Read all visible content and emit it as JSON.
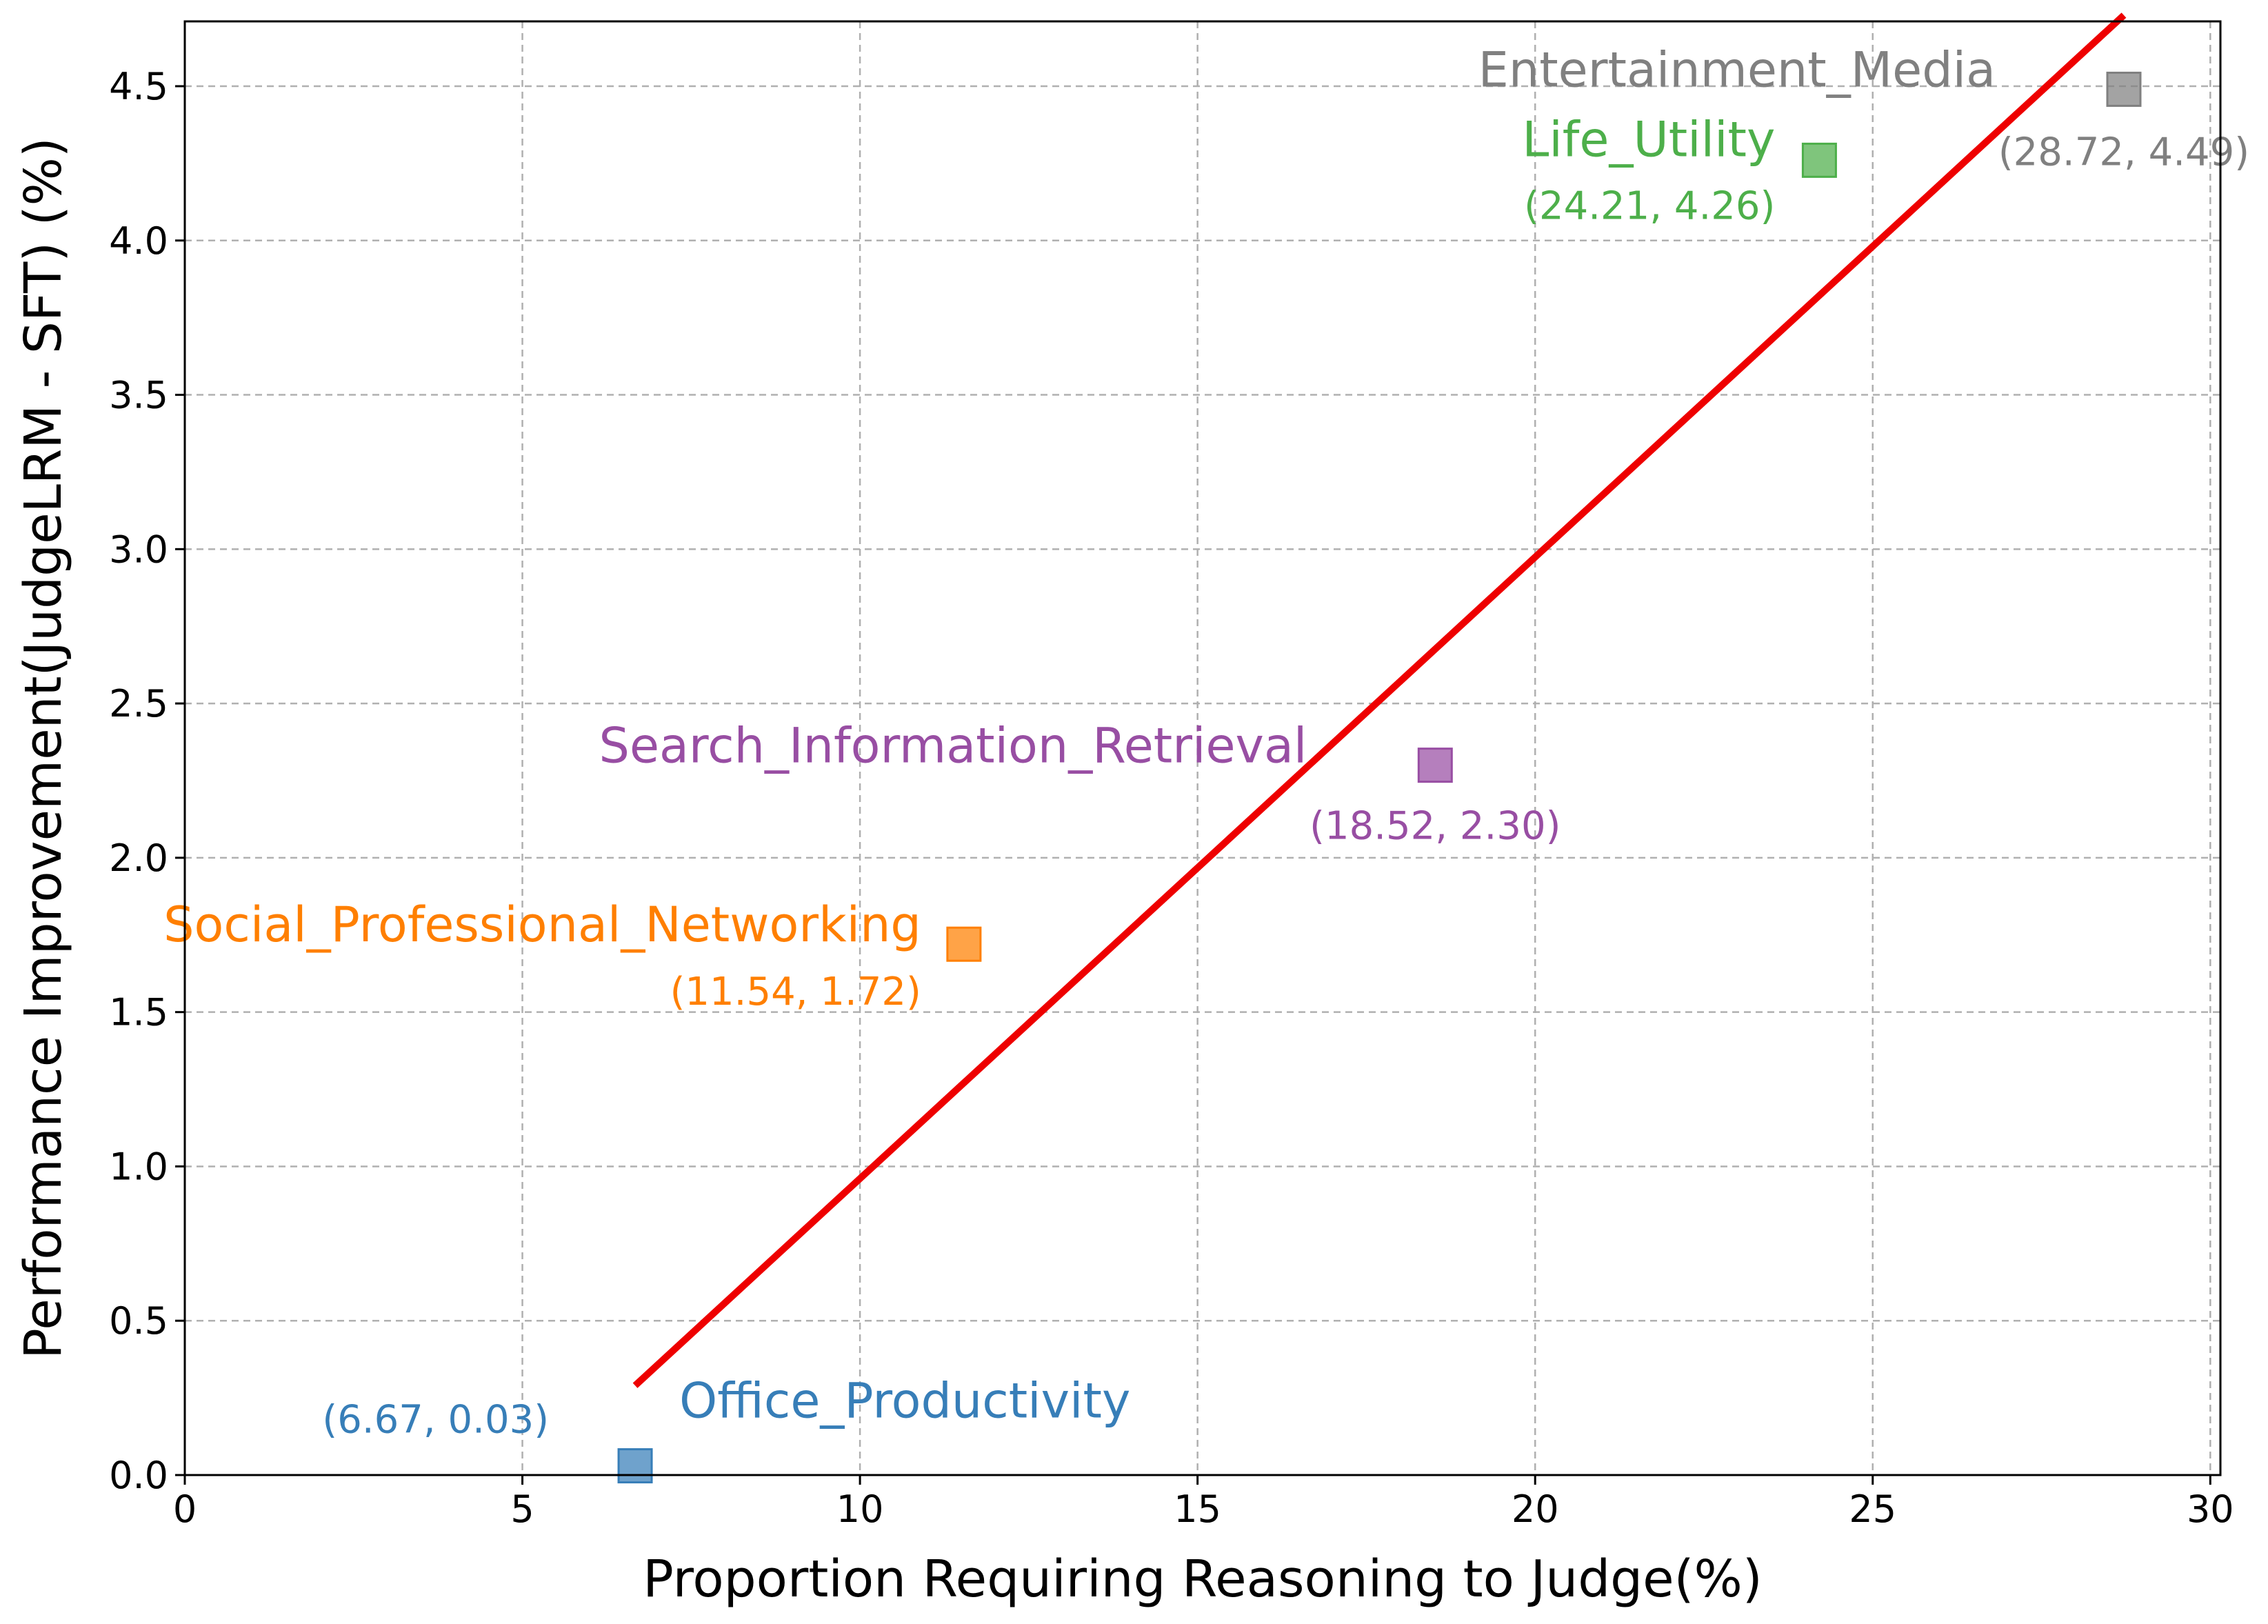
{
  "chart_data": {
    "type": "scatter",
    "xlabel": "Proportion Requiring Reasoning to Judge(%)",
    "ylabel": "Performance Improvement(JudgeLRM - SFT) (%)",
    "xlim": [
      0,
      30.15
    ],
    "ylim": [
      0,
      4.71
    ],
    "xticks": [
      0,
      5,
      10,
      15,
      20,
      25,
      30
    ],
    "yticks": [
      0.0,
      0.5,
      1.0,
      1.5,
      2.0,
      2.5,
      3.0,
      3.5,
      4.0,
      4.5
    ],
    "xtick_labels": [
      "0",
      "5",
      "10",
      "15",
      "20",
      "25",
      "30"
    ],
    "ytick_labels": [
      "0.0",
      "0.5",
      "1.0",
      "1.5",
      "2.0",
      "2.5",
      "3.0",
      "3.5",
      "4.0",
      "4.5"
    ],
    "grid": true,
    "marker": "square",
    "points": [
      {
        "name": "Office_Productivity",
        "x": 6.67,
        "y": 0.03,
        "coord_label": "(6.67, 0.03)",
        "color": "#377eb8"
      },
      {
        "name": "Social_Professional_Networking",
        "x": 11.54,
        "y": 1.72,
        "coord_label": "(11.54, 1.72)",
        "color": "#ff7f00"
      },
      {
        "name": "Search_Information_Retrieval",
        "x": 18.52,
        "y": 2.3,
        "coord_label": "(18.52, 2.30)",
        "color": "#984ea3"
      },
      {
        "name": "Life_Utility",
        "x": 24.21,
        "y": 4.26,
        "coord_label": "(24.21, 4.26)",
        "color": "#4daf4a"
      },
      {
        "name": "Entertainment_Media",
        "x": 28.72,
        "y": 4.49,
        "coord_label": "(28.72, 4.49)",
        "color": "#808080"
      }
    ],
    "trend_line": {
      "x": [
        6.67,
        28.72
      ],
      "y": [
        0.29,
        4.73
      ],
      "color": "#ee0000"
    }
  }
}
